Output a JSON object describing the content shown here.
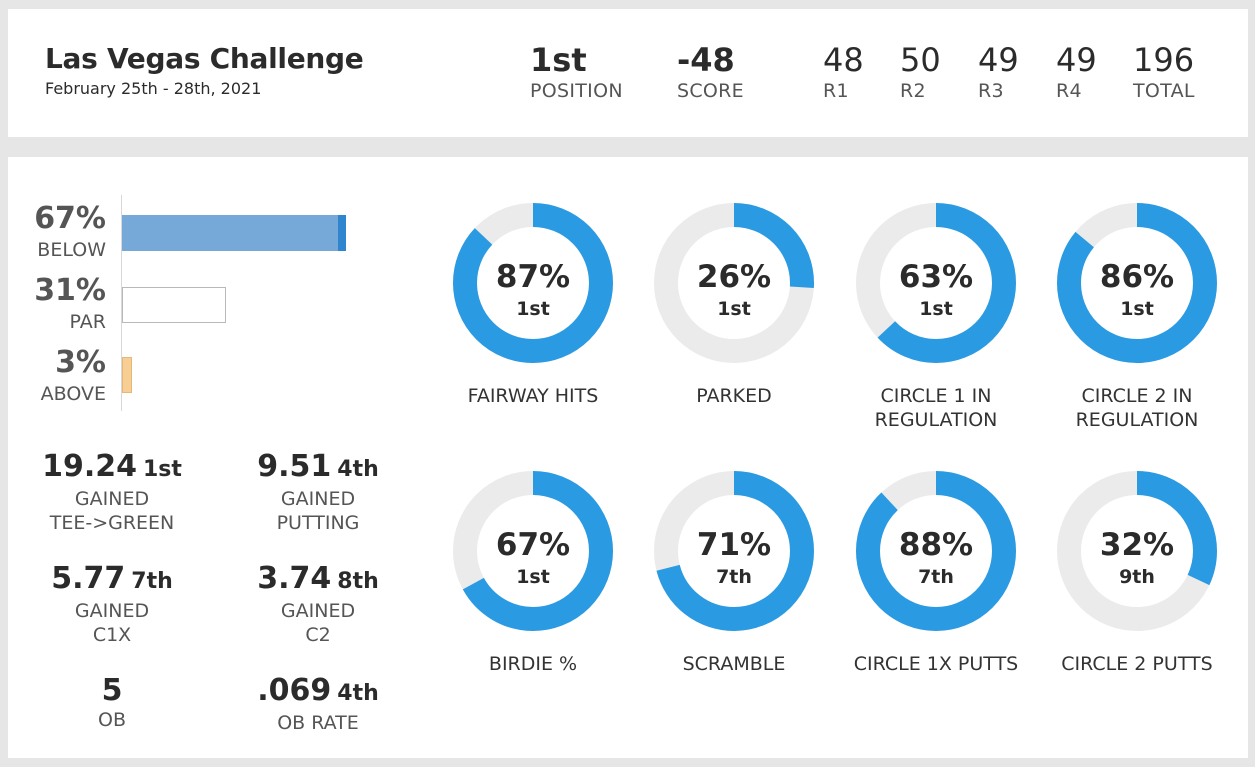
{
  "event": {
    "title": "Las Vegas Challenge",
    "dates": "February 25th - 28th, 2021"
  },
  "header_stats": [
    {
      "value": "1st",
      "label": "POSITION"
    },
    {
      "value": "-48",
      "label": "SCORE"
    },
    {
      "value": "48",
      "label": "R1"
    },
    {
      "value": "50",
      "label": "R2"
    },
    {
      "value": "49",
      "label": "R3"
    },
    {
      "value": "49",
      "label": "R4"
    },
    {
      "value": "196",
      "label": "TOTAL"
    }
  ],
  "score_distribution": [
    {
      "pct_label": "67%",
      "label": "BELOW",
      "value": 67
    },
    {
      "pct_label": "31%",
      "label": "PAR",
      "value": 31
    },
    {
      "pct_label": "3%",
      "label": "ABOVE",
      "value": 3
    }
  ],
  "gained_stats": [
    {
      "value": "19.24",
      "rank": "1st",
      "line1": "GAINED",
      "line2": "TEE->GREEN"
    },
    {
      "value": "9.51",
      "rank": "4th",
      "line1": "GAINED",
      "line2": "PUTTING"
    },
    {
      "value": "5.77",
      "rank": "7th",
      "line1": "GAINED",
      "line2": "C1X"
    },
    {
      "value": "3.74",
      "rank": "8th",
      "line1": "GAINED",
      "line2": "C2"
    },
    {
      "value": "5",
      "rank": "",
      "line1": "OB",
      "line2": ""
    },
    {
      "value": ".069",
      "rank": "4th",
      "line1": "OB RATE",
      "line2": ""
    }
  ],
  "donuts": [
    {
      "pct_label": "87%",
      "value": 87,
      "rank": "1st",
      "line1": "FAIRWAY HITS",
      "line2": ""
    },
    {
      "pct_label": "26%",
      "value": 26,
      "rank": "1st",
      "line1": "PARKED",
      "line2": ""
    },
    {
      "pct_label": "63%",
      "value": 63,
      "rank": "1st",
      "line1": "CIRCLE 1 IN",
      "line2": "REGULATION"
    },
    {
      "pct_label": "86%",
      "value": 86,
      "rank": "1st",
      "line1": "CIRCLE 2 IN",
      "line2": "REGULATION"
    },
    {
      "pct_label": "67%",
      "value": 67,
      "rank": "1st",
      "line1": "BIRDIE %",
      "line2": ""
    },
    {
      "pct_label": "71%",
      "value": 71,
      "rank": "7th",
      "line1": "SCRAMBLE",
      "line2": ""
    },
    {
      "pct_label": "88%",
      "value": 88,
      "rank": "7th",
      "line1": "CIRCLE 1X PUTTS",
      "line2": ""
    },
    {
      "pct_label": "32%",
      "value": 32,
      "rank": "9th",
      "line1": "CIRCLE 2 PUTTS",
      "line2": ""
    }
  ],
  "colors": {
    "ring_fill": "#2a9ae2",
    "ring_track": "#ebebeb",
    "bar_below": "#77a9d8",
    "bar_above": "#f7cf94",
    "background": "#e6e6e6"
  }
}
